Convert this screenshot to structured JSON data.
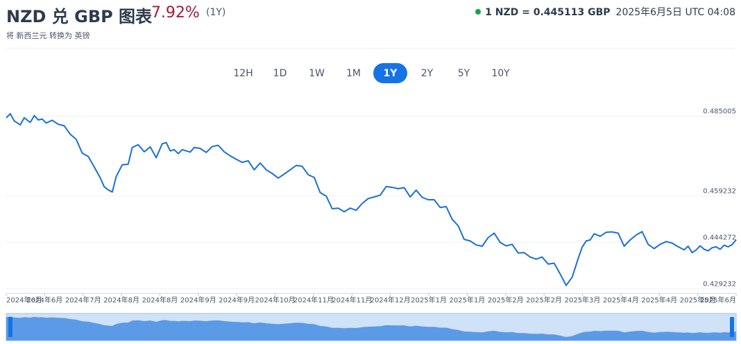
{
  "header": {
    "title": "NZD 兑 GBP 图表",
    "change": "-7.92%",
    "period": "(1Y)",
    "subtitle": "将 新西兰元 转换为 英镑",
    "rate": "1 NZD = 0.445113 GBP",
    "timestamp": "2025年6月5日 UTC 04:08",
    "status_color": "#16a34a"
  },
  "tabs": [
    {
      "label": "12H",
      "active": false
    },
    {
      "label": "1D",
      "active": false
    },
    {
      "label": "1W",
      "active": false
    },
    {
      "label": "1M",
      "active": false
    },
    {
      "label": "1Y",
      "active": true
    },
    {
      "label": "2Y",
      "active": false
    },
    {
      "label": "5Y",
      "active": false
    },
    {
      "label": "10Y",
      "active": false
    }
  ],
  "colors": {
    "line": "#1a6fd4",
    "accent": "#1573e6",
    "navigator_fill": "#5b9ae6",
    "navigator_bg": "#cfe2f8",
    "negative": "#a11a3a"
  },
  "chart_data": {
    "type": "line",
    "y_ticks": [
      "0.485005",
      "0.459232",
      "0.444272",
      "0.429232"
    ],
    "x_tick_labels": [
      "2024年6月",
      "2024年6月",
      "2024年7月",
      "2024年8月",
      "2024年8月",
      "2024年9月",
      "2024年9月",
      "2024年10月",
      "2024年11月",
      "2024年11月",
      "2024年12月",
      "2025年1月",
      "2025年1月",
      "2025年2月",
      "2025年2月",
      "2025年3月",
      "2025年4月",
      "2025年4月",
      "2025年5月",
      "2025年6月"
    ],
    "ylim": [
      0.4282,
      0.4867
    ],
    "xlim": [
      0,
      365
    ],
    "grid": true,
    "series": [
      {
        "x": [
          0,
          2,
          4,
          7,
          9,
          12,
          14,
          16,
          18,
          20,
          23,
          26,
          29,
          32,
          35,
          38,
          41,
          44,
          47,
          49,
          51,
          53,
          55,
          58,
          61,
          63,
          66,
          69,
          72,
          75,
          78,
          80,
          82,
          84,
          86,
          88,
          90,
          92,
          94,
          97,
          100,
          103,
          106,
          109,
          112,
          115,
          118,
          121,
          124,
          127,
          130,
          133,
          136,
          139,
          142,
          145,
          148,
          151,
          154,
          157,
          160,
          163,
          166,
          169,
          172,
          175,
          178,
          181,
          184,
          187,
          190,
          193,
          196,
          199,
          202,
          205,
          208,
          211,
          214,
          217,
          220,
          223,
          226,
          229,
          232,
          235,
          238,
          241,
          244,
          247,
          250,
          253,
          256,
          259,
          262,
          265,
          268,
          271,
          274,
          277,
          280,
          283,
          286,
          288,
          290,
          292,
          294,
          297,
          300,
          303,
          306,
          309,
          312,
          315,
          318,
          321,
          324,
          327,
          330,
          333,
          335,
          337,
          339,
          341,
          343,
          345,
          347,
          349,
          351,
          353,
          355,
          357,
          359,
          361,
          363,
          365
        ],
        "y": [
          0.4845,
          0.4858,
          0.4835,
          0.4822,
          0.4845,
          0.483,
          0.4852,
          0.4838,
          0.4841,
          0.4828,
          0.4837,
          0.4824,
          0.4819,
          0.4792,
          0.4775,
          0.4731,
          0.472,
          0.4686,
          0.4651,
          0.4622,
          0.4612,
          0.4605,
          0.4655,
          0.4693,
          0.4695,
          0.4749,
          0.4758,
          0.4735,
          0.4751,
          0.4716,
          0.4761,
          0.4765,
          0.4738,
          0.4742,
          0.4729,
          0.4742,
          0.4738,
          0.4734,
          0.4749,
          0.4746,
          0.4733,
          0.4752,
          0.4756,
          0.4735,
          0.4722,
          0.4711,
          0.4701,
          0.4706,
          0.4677,
          0.4699,
          0.4677,
          0.4665,
          0.465,
          0.4663,
          0.4677,
          0.4691,
          0.4688,
          0.4661,
          0.4652,
          0.4603,
          0.4592,
          0.4551,
          0.4553,
          0.4541,
          0.4553,
          0.4546,
          0.4568,
          0.4584,
          0.4589,
          0.4595,
          0.4623,
          0.462,
          0.4616,
          0.4619,
          0.4589,
          0.4611,
          0.4588,
          0.458,
          0.458,
          0.4555,
          0.4558,
          0.4517,
          0.4496,
          0.4452,
          0.4447,
          0.4434,
          0.443,
          0.4458,
          0.4472,
          0.4442,
          0.4431,
          0.4436,
          0.4408,
          0.4409,
          0.4395,
          0.4388,
          0.4395,
          0.4372,
          0.4375,
          0.434,
          0.4303,
          0.433,
          0.439,
          0.4427,
          0.4447,
          0.445,
          0.447,
          0.4462,
          0.4475,
          0.4476,
          0.4472,
          0.443,
          0.445,
          0.4466,
          0.4477,
          0.4436,
          0.4422,
          0.4436,
          0.4445,
          0.444,
          0.4432,
          0.4425,
          0.4418,
          0.443,
          0.4409,
          0.4418,
          0.4431,
          0.442,
          0.4415,
          0.4425,
          0.4428,
          0.442,
          0.4433,
          0.4428,
          0.4435,
          0.4451
        ]
      }
    ]
  }
}
